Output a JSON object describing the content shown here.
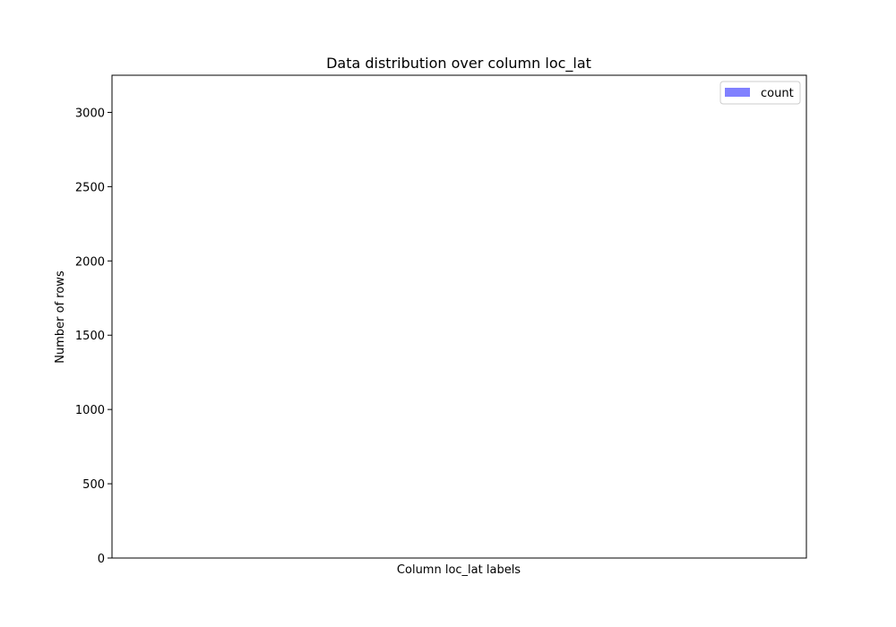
{
  "chart_data": {
    "type": "bar",
    "title": "Data distribution over column loc_lat",
    "xlabel": "Column loc_lat labels",
    "ylabel": "Number of rows",
    "categories": [],
    "series": [
      {
        "name": "count",
        "values": [],
        "color": "#8080ff"
      }
    ],
    "ylim": [
      0,
      3250
    ],
    "yticks": [
      0,
      500,
      1000,
      1500,
      2000,
      2500,
      3000
    ],
    "grid": false,
    "legend_position": "top-right"
  }
}
